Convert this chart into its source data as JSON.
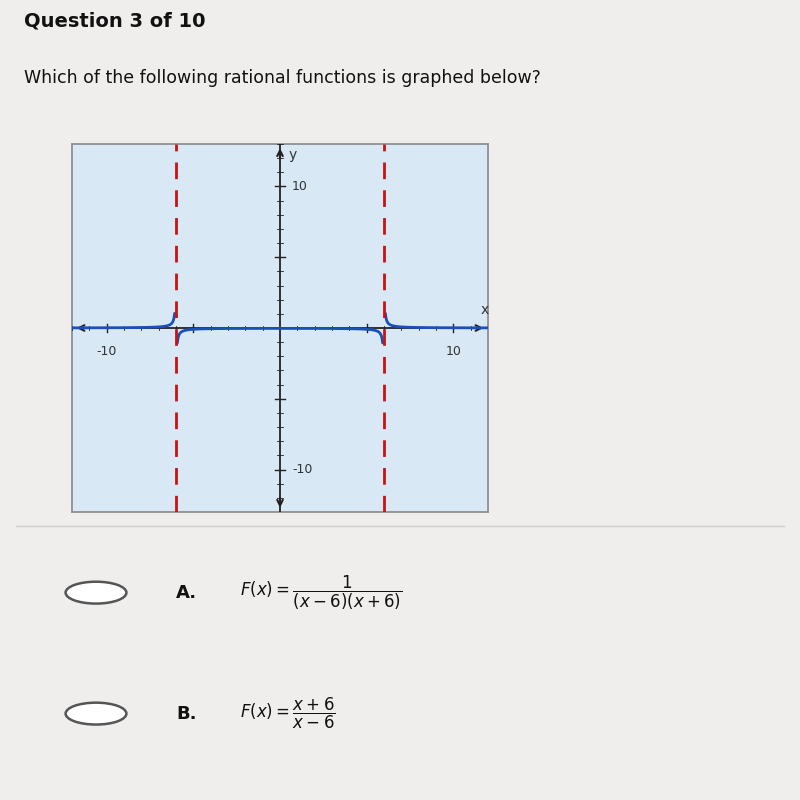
{
  "title": "Question 3 of 10",
  "question_text": "Which of the following rational functions is graphed below?",
  "xlim": [
    -12,
    12
  ],
  "ylim": [
    -13,
    13
  ],
  "asymptotes": [
    -6,
    6
  ],
  "bg_color": "#f0eeec",
  "plot_bg_color": "#d8e8f4",
  "plot_border_color": "#888888",
  "curve_color": "#1a50b8",
  "asymptote_color": "#cc1111",
  "axis_color": "#222222",
  "tick_label_color": "#333333",
  "answer_A_label": "A.",
  "answer_A_formula": "$F(x) = \\dfrac{1}{(x-6)(x+6)}$",
  "answer_B_label": "B.",
  "answer_B_formula": "$F(x) = \\dfrac{x+6}{x-6}$",
  "choice_circle_color": "#ffffff",
  "choice_border_color": "#555555"
}
